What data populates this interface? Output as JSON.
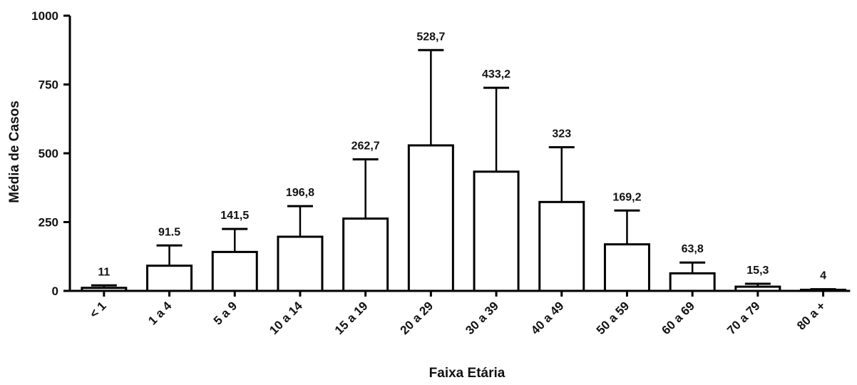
{
  "chart_data": {
    "type": "bar",
    "title": "",
    "xlabel": "Faixa Etária",
    "ylabel": "Média de Casos",
    "ylim": [
      0,
      1000
    ],
    "yticks": [
      0,
      250,
      500,
      750,
      1000
    ],
    "categories": [
      "< 1",
      "1 a 4",
      "5 a 9",
      "10 a 14",
      "15 a 19",
      "20 a 29",
      "30 a 39",
      "40 a 49",
      "50 a 59",
      "60 a 69",
      "70 a 79",
      "80 a +"
    ],
    "values": [
      11,
      91.5,
      141.5,
      196.8,
      262.7,
      528.7,
      433.2,
      323,
      169.2,
      63.8,
      15.3,
      4
    ],
    "value_labels": [
      "11",
      "91.5",
      "141,5",
      "196,8",
      "262,7",
      "528,7",
      "433,2",
      "323",
      "169,2",
      "63,8",
      "15,3",
      "4"
    ],
    "error_upper": [
      20,
      165,
      225,
      308,
      478,
      875,
      738,
      522,
      292,
      103,
      26,
      6
    ],
    "grid": false,
    "legend": "none",
    "colors": {
      "bar_fill": "#ffffff",
      "stroke": "#000000",
      "text": "#111111"
    }
  }
}
